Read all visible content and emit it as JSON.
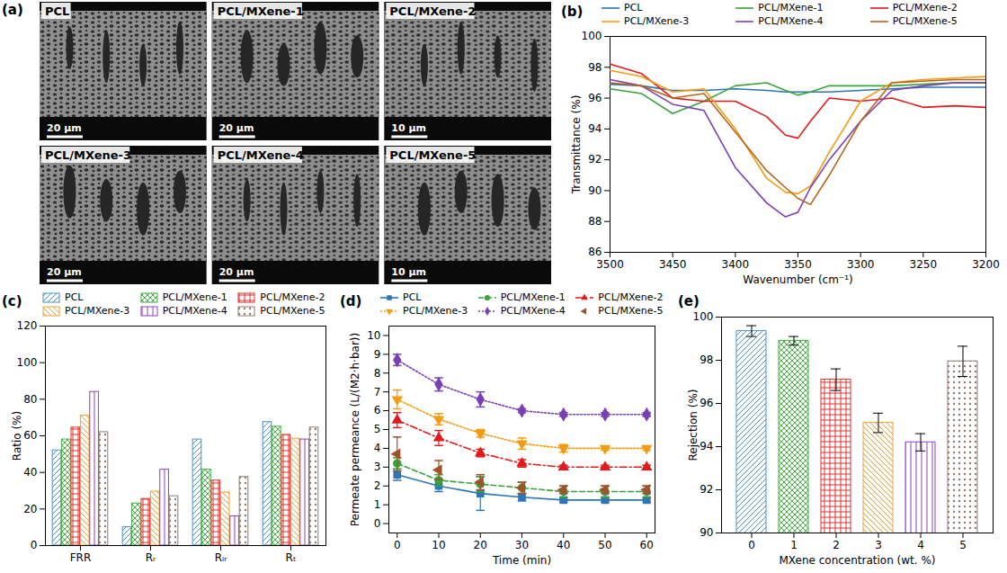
{
  "chart_data": [
    {
      "type": "image_grid",
      "title": "(a)",
      "images": [
        {
          "name": "PCL",
          "scale_bar": "20 μm"
        },
        {
          "name": "PCL/MXene-1",
          "scale_bar": "20 μm"
        },
        {
          "name": "PCL/MXene-2",
          "scale_bar": "10 μm"
        },
        {
          "name": "PCL/MXene-3",
          "scale_bar": "20 μm"
        },
        {
          "name": "PCL/MXene-4",
          "scale_bar": "20 μm"
        },
        {
          "name": "PCL/MXene-5",
          "scale_bar": "10 μm"
        }
      ]
    },
    {
      "type": "line",
      "title": "(b)",
      "xlabel": "Wavenumber (cm⁻¹)",
      "ylabel": "Transmittance (%)",
      "x": [
        3500,
        3475,
        3450,
        3425,
        3400,
        3375,
        3360,
        3350,
        3340,
        3325,
        3300,
        3275,
        3250,
        3225,
        3200
      ],
      "xlim": [
        3500,
        3200
      ],
      "xticks": [
        3500,
        3450,
        3400,
        3350,
        3300,
        3250,
        3200
      ],
      "ylim": [
        86,
        100
      ],
      "yticks": [
        86,
        88,
        90,
        92,
        94,
        96,
        98,
        100
      ],
      "legend": "top",
      "series": [
        {
          "name": "PCL",
          "color": "#2e75b6",
          "line_style": "solid",
          "values": [
            96.9,
            96.8,
            96.5,
            96.5,
            96.6,
            96.5,
            96.4,
            96.4,
            96.4,
            96.4,
            96.5,
            96.6,
            96.7,
            96.7,
            96.7
          ]
        },
        {
          "name": "PCL/MXene-1",
          "color": "#3aa33a",
          "line_style": "solid",
          "values": [
            96.6,
            96.3,
            95.0,
            95.8,
            96.8,
            97.0,
            96.5,
            96.2,
            96.4,
            96.8,
            96.8,
            96.8,
            96.9,
            97.0,
            97.0
          ]
        },
        {
          "name": "PCL/MXene-2",
          "color": "#e31a1c",
          "line_style": "solid",
          "values": [
            98.2,
            97.6,
            96.0,
            95.8,
            95.8,
            94.8,
            93.6,
            93.4,
            94.5,
            96.0,
            95.8,
            96.0,
            95.4,
            95.5,
            95.4
          ]
        },
        {
          "name": "PCL/MXene-3",
          "color": "#f39c12",
          "line_style": "solid",
          "values": [
            97.8,
            97.4,
            96.4,
            96.6,
            94.0,
            90.8,
            89.9,
            89.8,
            90.3,
            92.5,
            95.8,
            97.0,
            97.2,
            97.3,
            97.4
          ]
        },
        {
          "name": "PCL/MXene-4",
          "color": "#7b3fb5",
          "line_style": "solid",
          "values": [
            97.2,
            96.8,
            95.6,
            95.2,
            91.5,
            89.2,
            88.3,
            88.6,
            90.2,
            92.0,
            94.5,
            96.5,
            96.8,
            97.0,
            97.0
          ]
        },
        {
          "name": "PCL/MXene-5",
          "color": "#b5651d",
          "line_style": "solid",
          "values": [
            97.0,
            96.8,
            96.0,
            96.3,
            93.8,
            91.3,
            90.2,
            89.5,
            89.1,
            91.0,
            94.5,
            97.0,
            97.1,
            97.2,
            97.2
          ]
        }
      ]
    },
    {
      "type": "bar",
      "title": "(c)",
      "ylabel": "Ratio (%)",
      "categories": [
        "FRR",
        "Rᵣ",
        "Rᵢᵣ",
        "Rₜ"
      ],
      "ylim": [
        0,
        120
      ],
      "yticks": [
        0,
        20,
        40,
        60,
        80,
        100,
        120
      ],
      "legend": "top",
      "series": [
        {
          "name": "PCL",
          "color": "#4a90c8",
          "values": [
            52,
            10,
            58,
            67.5
          ]
        },
        {
          "name": "PCL/MXene-1",
          "color": "#40b040",
          "values": [
            58,
            23,
            41.5,
            65
          ]
        },
        {
          "name": "PCL/MXene-2",
          "color": "#e03030",
          "values": [
            64.5,
            25.5,
            35.5,
            60.5
          ]
        },
        {
          "name": "PCL/MXene-3",
          "color": "#f0a030",
          "values": [
            71,
            29.5,
            29,
            58.5
          ]
        },
        {
          "name": "PCL/MXene-4",
          "color": "#9040c0",
          "values": [
            84,
            41.5,
            16,
            58
          ]
        },
        {
          "name": "PCL/MXene-5",
          "color": "#8c7b70",
          "values": [
            62,
            27,
            37.5,
            64.5
          ]
        }
      ]
    },
    {
      "type": "line",
      "title": "(d)",
      "xlabel": "Time (min)",
      "ylabel": "Permeate permeance (L/(M2·h·bar))",
      "x": [
        0,
        10,
        20,
        30,
        40,
        50,
        60
      ],
      "xlim": [
        -2,
        62
      ],
      "xticks": [
        0,
        10,
        20,
        30,
        40,
        50,
        60
      ],
      "ylim": [
        -0.5,
        10.5
      ],
      "yticks": [
        0,
        1,
        2,
        3,
        4,
        5,
        6,
        7,
        8,
        9,
        10
      ],
      "legend": "top",
      "series": [
        {
          "name": "PCL",
          "color": "#2e75b6",
          "marker": "square",
          "line_style": "solid",
          "values": [
            2.6,
            2.0,
            1.6,
            1.4,
            1.25,
            1.25,
            1.25
          ],
          "errors": [
            0.3,
            0.3,
            0.9,
            0.2,
            0.1,
            0.1,
            0.1
          ]
        },
        {
          "name": "PCL/MXene-1",
          "color": "#3aa33a",
          "marker": "circle",
          "line_style": "dashed",
          "values": [
            3.2,
            2.3,
            2.1,
            1.9,
            1.7,
            1.7,
            1.7
          ],
          "errors": [
            0.3,
            0.3,
            0.4,
            0.3,
            0.3,
            0.3,
            0.3
          ]
        },
        {
          "name": "PCL/MXene-2",
          "color": "#e31a1c",
          "marker": "triangle-up",
          "line_style": "dashdot",
          "values": [
            5.5,
            4.55,
            3.75,
            3.2,
            3.0,
            3.0,
            3.0
          ],
          "errors": [
            0.4,
            0.4,
            0.2,
            0.2,
            0.1,
            0.1,
            0.1
          ]
        },
        {
          "name": "PCL/MXene-3",
          "color": "#f39c12",
          "marker": "triangle-down",
          "line_style": "dotted",
          "values": [
            6.6,
            5.55,
            4.8,
            4.25,
            4.0,
            4.0,
            4.0
          ],
          "errors": [
            0.5,
            0.3,
            0.2,
            0.3,
            0.2,
            0.1,
            0.1
          ]
        },
        {
          "name": "PCL/MXene-4",
          "color": "#7b3fb5",
          "marker": "diamond",
          "line_style": "dotted",
          "values": [
            8.7,
            7.4,
            6.6,
            6.0,
            5.8,
            5.8,
            5.8
          ],
          "errors": [
            0.3,
            0.35,
            0.4,
            0.1,
            0.1,
            0.1,
            0.1
          ]
        },
        {
          "name": "PCL/MXene-5",
          "color": "#a0522d",
          "marker": "triangle-left",
          "line_style": "none",
          "values": [
            3.7,
            2.85,
            2.2,
            1.9,
            1.8,
            1.8,
            1.8
          ],
          "errors": [
            0.9,
            0.5,
            0.4,
            0.3,
            0.2,
            0.2,
            0.2
          ]
        }
      ]
    },
    {
      "type": "bar",
      "title": "(e)",
      "xlabel": "MXene concentration (wt. %)",
      "ylabel": "Rejection (%)",
      "categories": [
        0,
        1,
        2,
        3,
        4,
        5
      ],
      "values": [
        99.35,
        98.9,
        97.1,
        95.1,
        94.2,
        97.95
      ],
      "errors": [
        0.25,
        0.2,
        0.5,
        0.45,
        0.4,
        0.7
      ],
      "colors": [
        "#4a90c8",
        "#40b040",
        "#e03030",
        "#f0a030",
        "#9040c0",
        "#8c7b70"
      ],
      "ylim": [
        90,
        100
      ],
      "yticks": [
        90,
        92,
        94,
        96,
        98,
        100
      ]
    }
  ]
}
